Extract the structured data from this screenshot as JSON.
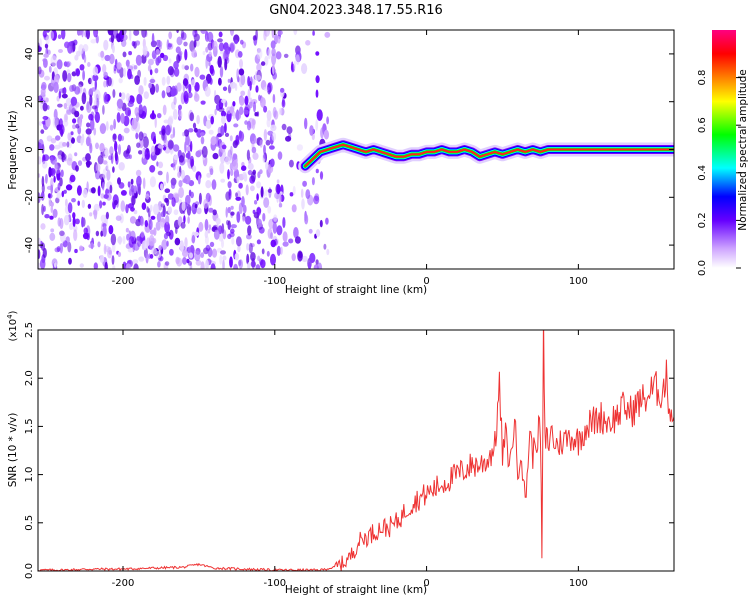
{
  "title": "GN04.2023.348.17.55.R16",
  "chart_data": [
    {
      "type": "heatmap",
      "xlabel": "Height of straight line (km)",
      "ylabel": "Frequency (Hz)",
      "xlim": [
        -256,
        163
      ],
      "ylim": [
        -50,
        50
      ],
      "x_ticks": [
        -200,
        -100,
        0,
        100
      ],
      "y_ticks": [
        -40,
        -20,
        0,
        20,
        40
      ],
      "colorbar": {
        "label": "Normalized spectral amplitude",
        "range": [
          0,
          1
        ],
        "ticks": [
          "0.0",
          "0.2",
          "0.4",
          "0.6",
          "0.8"
        ],
        "colormap": [
          "#ffffff",
          "#cfa6ff",
          "#6600ff",
          "#0000ff",
          "#00ffff",
          "#00ff00",
          "#ffff00",
          "#ff8000",
          "#ff0000",
          "#ff0080"
        ]
      },
      "signal_track_x": [
        -80,
        -75,
        -70,
        -65,
        -60,
        -55,
        -50,
        -45,
        -40,
        -35,
        -30,
        -25,
        -20,
        -15,
        -10,
        -5,
        0,
        5,
        10,
        15,
        20,
        25,
        30,
        35,
        40,
        45,
        50,
        55,
        60,
        65,
        70,
        75,
        80,
        90,
        100,
        163
      ],
      "signal_track_freq": [
        -7,
        -4,
        -1,
        0,
        1,
        2,
        1,
        0,
        -1,
        0,
        -1,
        -2,
        -3,
        -3,
        -2,
        -2,
        -1,
        -1,
        0,
        -1,
        -1,
        0,
        -1,
        -3,
        -2,
        -1,
        -2,
        -1,
        0,
        -1,
        0,
        -1,
        0,
        0,
        0,
        0
      ],
      "noise_region_x": [
        -256,
        -65
      ]
    },
    {
      "type": "line",
      "xlabel": "Height of straight line (km)",
      "ylabel": "SNR (10 * v/v)",
      "y_multiplier": "(x10^4)",
      "xlim": [
        -256,
        163
      ],
      "ylim": [
        0,
        2.5
      ],
      "x_ticks": [
        -200,
        -100,
        0,
        100
      ],
      "y_ticks": [
        "0.0",
        "0.5",
        "1.0",
        "1.5",
        "2.0",
        "2.5"
      ],
      "color": "#ee3333",
      "series": [
        {
          "x": [
            -256,
            -240,
            -220,
            -200,
            -180,
            -160,
            -150,
            -140,
            -120,
            -100,
            -80,
            -70,
            -60,
            -55,
            -50,
            -45,
            -40,
            -35,
            -30,
            -25,
            -20,
            -15,
            -10,
            -5,
            0,
            5,
            10,
            15,
            20,
            25,
            30,
            35,
            40,
            45,
            48,
            50,
            52,
            55,
            58,
            60,
            62,
            65,
            68,
            70,
            72,
            75,
            76,
            77,
            78,
            79,
            80,
            82,
            85,
            90,
            95,
            100,
            105,
            110,
            115,
            120,
            125,
            130,
            135,
            140,
            145,
            150,
            155,
            158,
            160,
            163
          ],
          "y": [
            0.01,
            0.01,
            0.02,
            0.02,
            0.03,
            0.04,
            0.07,
            0.03,
            0.02,
            0.01,
            0.01,
            0.01,
            0.04,
            0.08,
            0.15,
            0.3,
            0.35,
            0.4,
            0.45,
            0.45,
            0.5,
            0.6,
            0.7,
            0.75,
            0.8,
            0.85,
            0.9,
            0.95,
            1.0,
            1.05,
            1.1,
            1.1,
            1.15,
            1.3,
            1.9,
            1.2,
            1.4,
            1.1,
            1.6,
            1.0,
            1.3,
            0.7,
            1.45,
            1.2,
            1.35,
            1.5,
            0.1,
            2.5,
            1.3,
            1.4,
            1.3,
            1.45,
            1.3,
            1.35,
            1.4,
            1.35,
            1.5,
            1.55,
            1.6,
            1.55,
            1.6,
            1.7,
            1.65,
            1.75,
            1.8,
            1.9,
            1.85,
            2.0,
            1.7,
            1.6
          ]
        }
      ]
    }
  ]
}
